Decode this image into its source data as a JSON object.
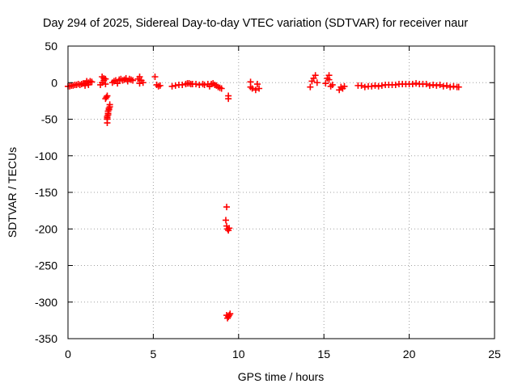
{
  "chart_data": {
    "type": "scatter",
    "title": "Day 294 of 2025, Sidereal Day-to-day VTEC variation (SDTVAR) for receiver naur",
    "xlabel": "GPS time / hours",
    "ylabel": "SDTVAR / TECUs",
    "xlim": [
      0,
      25
    ],
    "ylim": [
      -350,
      50
    ],
    "xticks": [
      0,
      5,
      10,
      15,
      20,
      25
    ],
    "yticks": [
      50,
      0,
      -50,
      -100,
      -150,
      -200,
      -250,
      -300,
      -350
    ],
    "grid": true,
    "marker": "plus",
    "colors": {
      "series": "#ff0000",
      "axis": "#000000",
      "grid": "#a0a0a0"
    },
    "series": [
      {
        "name": "SDTVAR",
        "points": [
          [
            0.0,
            -5
          ],
          [
            0.1,
            -5
          ],
          [
            0.2,
            -4
          ],
          [
            0.3,
            -4
          ],
          [
            0.4,
            -3
          ],
          [
            0.5,
            -3
          ],
          [
            0.6,
            -2
          ],
          [
            0.7,
            -3
          ],
          [
            0.8,
            -2
          ],
          [
            0.9,
            -1
          ],
          [
            1.0,
            -1
          ],
          [
            1.1,
            0
          ],
          [
            1.2,
            0
          ],
          [
            1.3,
            1
          ],
          [
            1.4,
            1
          ],
          [
            1.0,
            -4
          ],
          [
            1.2,
            -3
          ],
          [
            1.1,
            2
          ],
          [
            1.3,
            2
          ],
          [
            1.9,
            -3
          ],
          [
            2.0,
            0
          ],
          [
            2.0,
            8
          ],
          [
            2.1,
            6
          ],
          [
            2.1,
            3
          ],
          [
            2.2,
            5
          ],
          [
            2.2,
            -2
          ],
          [
            2.2,
            -22
          ],
          [
            2.25,
            -20
          ],
          [
            2.3,
            -18
          ],
          [
            2.3,
            -55
          ],
          [
            2.3,
            -50
          ],
          [
            2.3,
            -46
          ],
          [
            2.35,
            -42
          ],
          [
            2.35,
            -39
          ],
          [
            2.4,
            -37
          ],
          [
            2.4,
            -35
          ],
          [
            2.45,
            -33
          ],
          [
            2.45,
            -30
          ],
          [
            2.3,
            -48
          ],
          [
            2.35,
            -44
          ],
          [
            2.6,
            0
          ],
          [
            2.7,
            2
          ],
          [
            2.8,
            3
          ],
          [
            2.9,
            -1
          ],
          [
            3.0,
            4
          ],
          [
            3.1,
            5
          ],
          [
            3.2,
            3
          ],
          [
            3.3,
            4
          ],
          [
            3.4,
            5
          ],
          [
            3.5,
            2
          ],
          [
            3.6,
            5
          ],
          [
            3.7,
            4
          ],
          [
            3.8,
            3
          ],
          [
            3.4,
            6
          ],
          [
            4.1,
            5
          ],
          [
            4.2,
            8
          ],
          [
            4.3,
            3
          ],
          [
            4.4,
            0
          ],
          [
            4.2,
            -1
          ],
          [
            5.1,
            8
          ],
          [
            5.2,
            -3
          ],
          [
            5.3,
            -5
          ],
          [
            5.4,
            -4
          ],
          [
            6.1,
            -5
          ],
          [
            6.3,
            -4
          ],
          [
            6.5,
            -3
          ],
          [
            6.7,
            -3
          ],
          [
            6.9,
            -2
          ],
          [
            7.0,
            -1
          ],
          [
            7.1,
            -1
          ],
          [
            7.2,
            -2
          ],
          [
            7.3,
            -2
          ],
          [
            7.5,
            -2
          ],
          [
            7.7,
            -3
          ],
          [
            7.9,
            -2
          ],
          [
            8.0,
            -3
          ],
          [
            8.2,
            -2
          ],
          [
            8.3,
            -5
          ],
          [
            8.4,
            -2
          ],
          [
            8.5,
            -1
          ],
          [
            8.6,
            -3
          ],
          [
            8.7,
            -4
          ],
          [
            8.8,
            -6
          ],
          [
            8.9,
            -7
          ],
          [
            9.0,
            -8
          ],
          [
            9.4,
            -18
          ],
          [
            9.4,
            -22
          ],
          [
            9.3,
            -170
          ],
          [
            9.25,
            -188
          ],
          [
            9.3,
            -196
          ],
          [
            9.35,
            -200
          ],
          [
            9.4,
            -202
          ],
          [
            9.45,
            -199
          ],
          [
            9.3,
            -318
          ],
          [
            9.35,
            -322
          ],
          [
            9.4,
            -320
          ],
          [
            9.45,
            -318
          ],
          [
            9.5,
            -316
          ],
          [
            10.7,
            1
          ],
          [
            10.7,
            -6
          ],
          [
            10.8,
            -8
          ],
          [
            11.0,
            -10
          ],
          [
            11.1,
            -2
          ],
          [
            11.2,
            -8
          ],
          [
            14.2,
            -6
          ],
          [
            14.3,
            2
          ],
          [
            14.4,
            6
          ],
          [
            14.5,
            10
          ],
          [
            14.6,
            0
          ],
          [
            15.1,
            -1
          ],
          [
            15.2,
            6
          ],
          [
            15.3,
            4
          ],
          [
            15.4,
            -5
          ],
          [
            15.5,
            -3
          ],
          [
            15.3,
            10
          ],
          [
            15.9,
            -10
          ],
          [
            16.0,
            -6
          ],
          [
            16.1,
            -8
          ],
          [
            16.2,
            -5
          ],
          [
            17.0,
            -4
          ],
          [
            17.2,
            -4
          ],
          [
            17.4,
            -6
          ],
          [
            17.6,
            -5
          ],
          [
            17.8,
            -5
          ],
          [
            18.0,
            -4
          ],
          [
            18.2,
            -5
          ],
          [
            18.4,
            -4
          ],
          [
            18.6,
            -3
          ],
          [
            18.8,
            -3
          ],
          [
            19.0,
            -3
          ],
          [
            19.2,
            -3
          ],
          [
            19.4,
            -2
          ],
          [
            19.6,
            -2
          ],
          [
            19.8,
            -2
          ],
          [
            20.0,
            -2
          ],
          [
            20.2,
            -2
          ],
          [
            20.4,
            -1
          ],
          [
            20.6,
            -2
          ],
          [
            20.8,
            -2
          ],
          [
            21.0,
            -2
          ],
          [
            21.2,
            -4
          ],
          [
            21.4,
            -3
          ],
          [
            21.6,
            -4
          ],
          [
            21.8,
            -3
          ],
          [
            22.0,
            -5
          ],
          [
            22.2,
            -4
          ],
          [
            22.4,
            -6
          ],
          [
            22.6,
            -5
          ],
          [
            22.8,
            -6
          ],
          [
            22.9,
            -6
          ]
        ]
      }
    ]
  }
}
